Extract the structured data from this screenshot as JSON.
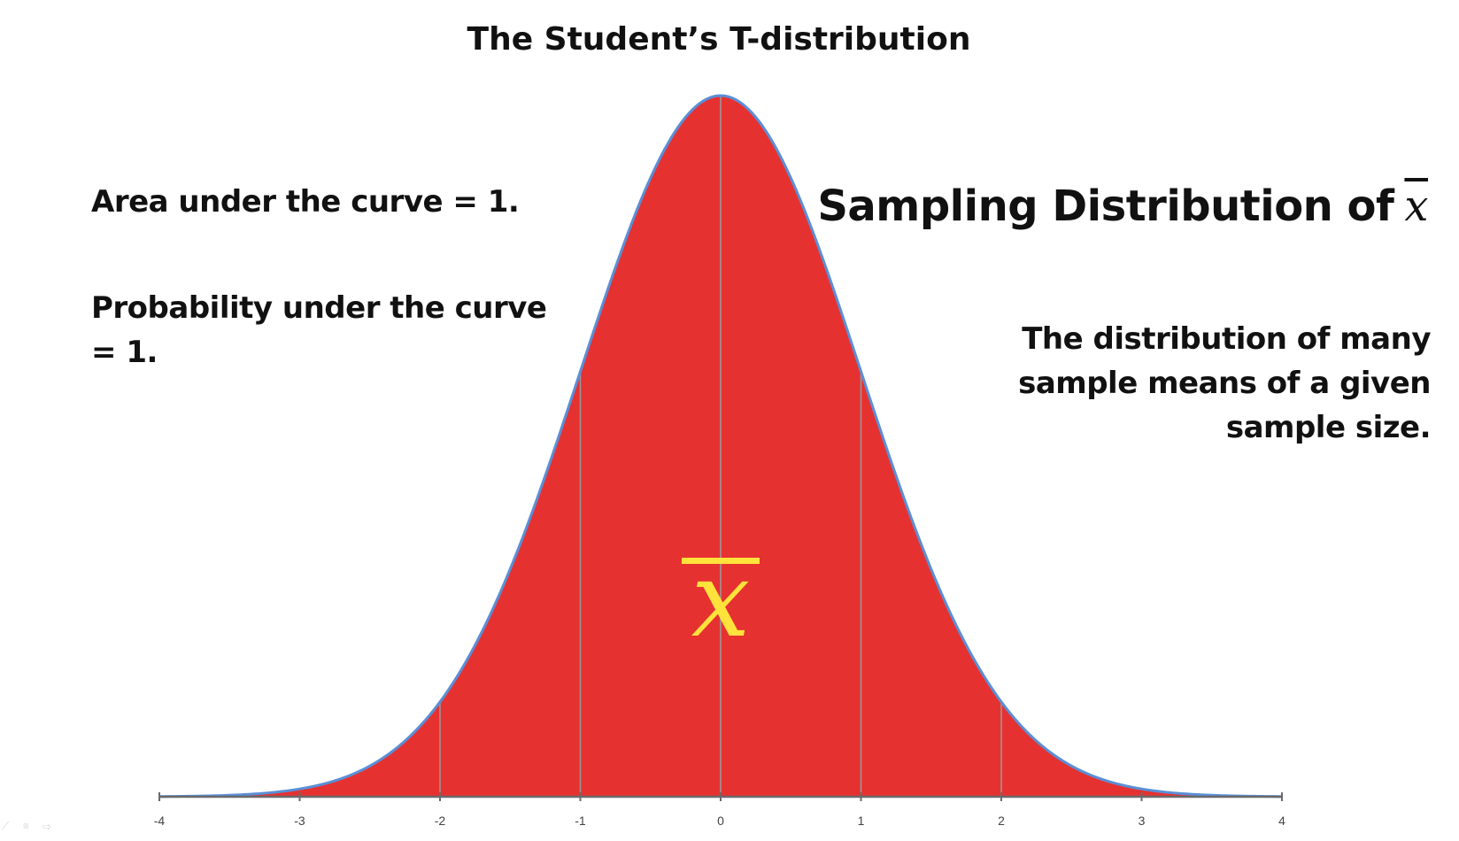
{
  "slide": {
    "title": "The Student’s T-distribution",
    "area_note": "Area under the curve = 1.",
    "probability_note": "Probability under the curve = 1.",
    "heading_right": "Sampling Distribution of",
    "heading_symbol": "x",
    "description": "The distribution of many sample means of a given sample size.",
    "center_symbol": "x"
  },
  "colors": {
    "fill": "#e63131",
    "curve": "#5b8fd6",
    "axis": "#6a6a6a",
    "gridline": "#9a9a9a",
    "symbol": "#ffe23b"
  },
  "chart_data": {
    "type": "area",
    "distribution": "normal",
    "mean": 0,
    "sd": 1,
    "x_ticks": [
      -4,
      -3,
      -2,
      -1,
      0,
      1,
      2,
      3,
      4
    ],
    "x_tick_labels": [
      "-4",
      "-3",
      "-2",
      "-1",
      "0",
      "1",
      "2",
      "3",
      "4"
    ],
    "xlim": [
      -4,
      4
    ],
    "vertical_gridlines_at": [
      -2,
      -1,
      0,
      1,
      2
    ],
    "grid": true,
    "legend": "none",
    "title": "The Student’s T-distribution",
    "xlabel": "",
    "ylabel": ""
  }
}
